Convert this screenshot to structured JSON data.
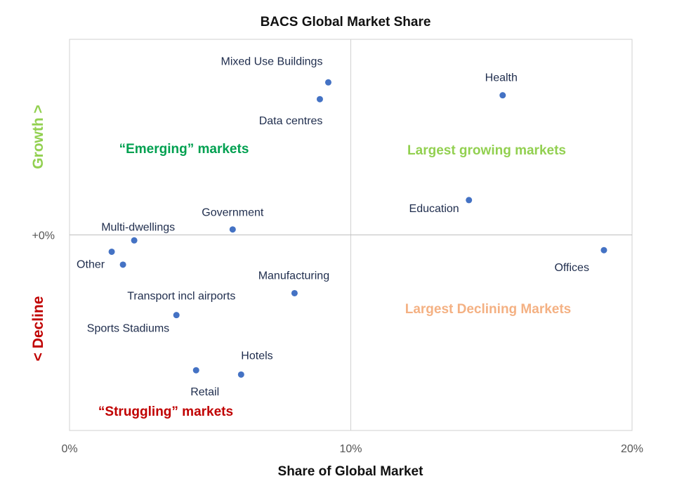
{
  "chart_data": {
    "type": "scatter",
    "title": "BACS Global Market Share",
    "xlabel": "Share of Global Market",
    "xlim": [
      0,
      20
    ],
    "x_ticks": [
      {
        "value": 0,
        "label": "0%"
      },
      {
        "value": 10,
        "label": "10%"
      },
      {
        "value": 20,
        "label": "20%"
      }
    ],
    "ylim": [
      -5.0,
      5.0
    ],
    "y_ticks": [
      {
        "value": 0,
        "label": "+0%"
      }
    ],
    "points": [
      {
        "name": "Mixed Use Buildings",
        "x": 9.2,
        "y": 3.9,
        "label_anchor": "end",
        "label_pos": "above-left"
      },
      {
        "name": "Data centres",
        "x": 8.9,
        "y": 3.47,
        "label_anchor": "end",
        "label_pos": "below-left"
      },
      {
        "name": "Health",
        "x": 15.4,
        "y": 3.57,
        "label_anchor": "middle",
        "label_pos": "above"
      },
      {
        "name": "Education",
        "x": 14.2,
        "y": 0.89,
        "label_anchor": "end",
        "label_pos": "below-left"
      },
      {
        "name": "Government",
        "x": 5.8,
        "y": 0.14,
        "label_anchor": "middle",
        "label_pos": "above"
      },
      {
        "name": "Multi-dwellings",
        "x": 2.3,
        "y": -0.14,
        "label_anchor": "end",
        "label_pos": "above-left"
      },
      {
        "name": "Other",
        "x": 1.5,
        "y": -0.43,
        "label_anchor": "end",
        "label_pos": "below-left"
      },
      {
        "name": "Other",
        "x": 1.9,
        "y": -0.76,
        "label_anchor": "none",
        "label_pos": "none"
      },
      {
        "name": "Offices",
        "x": 19.0,
        "y": -0.39,
        "label_anchor": "end",
        "label_pos": "below-left"
      },
      {
        "name": "Manufacturing",
        "x": 8.0,
        "y": -1.49,
        "label_anchor": "middle",
        "label_pos": "above"
      },
      {
        "name": "Transport incl airports",
        "x": 3.8,
        "y": -2.05,
        "label_anchor": "start",
        "label_pos": "above-right"
      },
      {
        "name": "Sports Stadiums",
        "x": 3.8,
        "y": -2.05,
        "label_anchor": "end",
        "label_pos": "below-left"
      },
      {
        "name": "Hotels",
        "x": 6.1,
        "y": -3.57,
        "label_anchor": "start",
        "label_pos": "above"
      },
      {
        "name": "Retail",
        "x": 4.5,
        "y": -3.46,
        "label_anchor": "start",
        "label_pos": "below-right"
      }
    ],
    "quadrant_labels": [
      {
        "text": "“Emerging” markets",
        "color": "#00a050",
        "position": "top-left"
      },
      {
        "text": "Largest growing markets",
        "color": "#92d050",
        "position": "top-right"
      },
      {
        "text": "Largest Declining Markets",
        "color": "#f4b183",
        "position": "bottom-right"
      },
      {
        "text": "“Struggling” markets",
        "color": "#c00000",
        "position": "bottom-left"
      }
    ],
    "side_labels": {
      "growth": {
        "text": "Growth >",
        "color": "#92d050"
      },
      "decline": {
        "text": "< Decline",
        "color": "#c00000"
      }
    },
    "point_color": "#4472c4",
    "grid": false
  }
}
